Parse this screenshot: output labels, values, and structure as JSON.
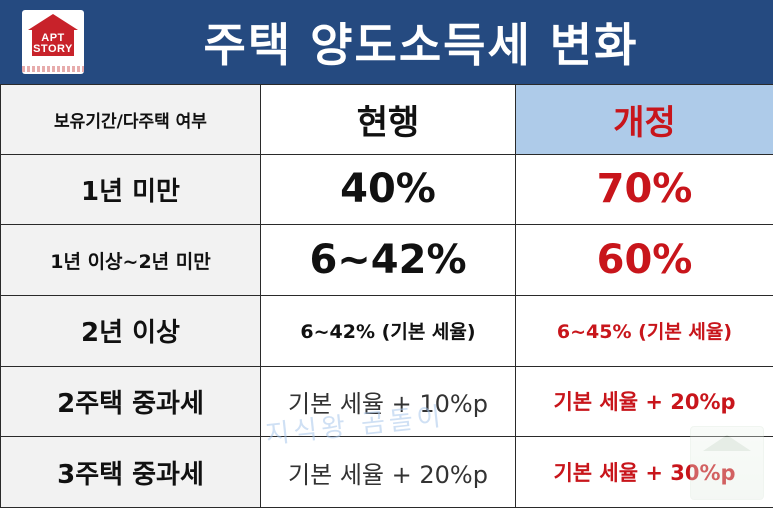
{
  "header": {
    "title": "주택 양도소득세 변화",
    "logo_text_line1": "APT",
    "logo_text_line2": "STORY"
  },
  "table": {
    "columns": [
      "보유기간/다주택 여부",
      "현행",
      "개정"
    ],
    "rows": [
      {
        "label": "1년 미만",
        "current": "40%",
        "revised": "70%"
      },
      {
        "label": "1년 이상~2년 미만",
        "current": "6~42%",
        "revised": "60%"
      },
      {
        "label": "2년 이상",
        "current": "6~42% (기본 세율)",
        "revised": "6~45% (기본 세율)"
      },
      {
        "label": "2주택 중과세",
        "current": "기본 세율 + 10%p",
        "revised": "기본 세율 + 20%p"
      },
      {
        "label": "3주택 중과세",
        "current": "기본 세율 + 20%p",
        "revised": "기본 세율 + 30%p"
      }
    ]
  },
  "watermark": {
    "text": "지식왕 곰돌이"
  },
  "colors": {
    "header_bg": "#254a80",
    "revised_header_bg": "#aecbe9",
    "revised_text": "#c8151b",
    "label_bg": "#f2f2f2"
  }
}
